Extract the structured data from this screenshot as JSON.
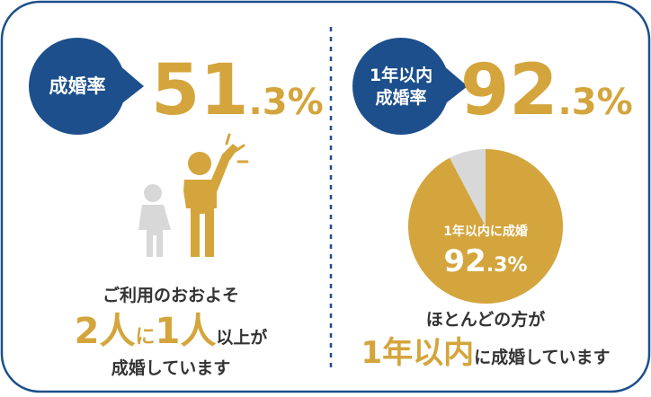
{
  "left": {
    "badge": [
      "成婚率"
    ],
    "rate": "51.3%",
    "caption": {
      "line1": "ご利用のおおよそ",
      "line2": [
        "2人",
        "に",
        "1人",
        "以上が"
      ],
      "line3": "成婚しています"
    }
  },
  "right": {
    "badge": [
      "1年以内",
      "成婚率"
    ],
    "rate": "92.3%",
    "caption": {
      "line1": "ほとんどの方が",
      "line2": [
        "1年以内",
        "に成婚しています"
      ]
    }
  },
  "chart_data": {
    "type": "pie",
    "label": "1年以内に成婚",
    "values": [
      92.3
    ],
    "value_labels": [
      "92.3%"
    ],
    "color": "#d4a53c",
    "background_color": "#d8d8d8"
  }
}
